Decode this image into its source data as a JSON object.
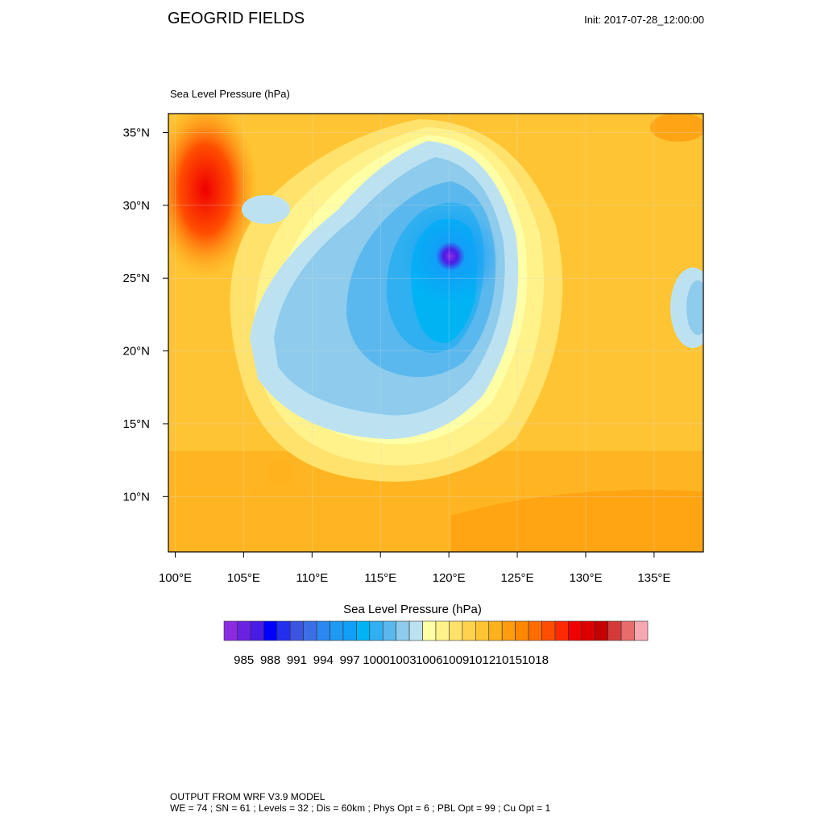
{
  "header": {
    "title": "GEOGRID FIELDS",
    "init": "Init: 2017-07-28_12:00:00"
  },
  "map": {
    "field_label": "Sea Level Pressure   (hPa)",
    "lon_labels": [
      "100°E",
      "105°E",
      "110°E",
      "115°E",
      "120°E",
      "125°E",
      "130°E",
      "135°E"
    ],
    "lat_labels": [
      "35°N",
      "30°N",
      "25°N",
      "20°N",
      "15°N",
      "10°N"
    ],
    "lon_values": [
      100,
      105,
      110,
      115,
      120,
      125,
      130,
      135
    ],
    "lat_values": [
      35,
      30,
      25,
      20,
      15,
      10
    ],
    "lon_range": [
      99.5,
      138.6
    ],
    "lat_range": [
      6.2,
      36.3
    ],
    "pressure_field": {
      "low_center": {
        "lon": 120.0,
        "lat": 26.9,
        "hPa": 984
      },
      "secondary_low": {
        "lon": 138.5,
        "lat": 23.5,
        "hPa": 1001
      },
      "high_northwest": {
        "lon": 102.5,
        "lat": 32.5,
        "hPa": 1015
      }
    }
  },
  "colorbar": {
    "title": "Sea Level Pressure  (hPa)",
    "tick_labels": [
      "985",
      "988",
      "991",
      "994",
      "997",
      "1000",
      "1003",
      "1006",
      "1009",
      "1012",
      "1015",
      "1018"
    ],
    "colors": [
      "#8a2be2",
      "#6a22e0",
      "#4b1be6",
      "#0000ff",
      "#2230ee",
      "#3b55e0",
      "#3a6fe8",
      "#2a88f0",
      "#1e9af5",
      "#129ff8",
      "#00b4f4",
      "#30b0f0",
      "#5ab8ee",
      "#8ecbec",
      "#bce2f2",
      "#ffffa6",
      "#fff28a",
      "#ffe26c",
      "#ffd24e",
      "#ffc433",
      "#ffb21d",
      "#ff9d0e",
      "#ff8800",
      "#ff6d00",
      "#ff4e00",
      "#ff2a00",
      "#f00000",
      "#dc0000",
      "#c40000",
      "#d43a3a",
      "#e86c6c",
      "#f5a8b0"
    ]
  },
  "footer": {
    "line1": "OUTPUT FROM WRF V3.9 MODEL",
    "line2": "WE = 74 ; SN = 61 ; Levels = 32 ; Dis = 60km ; Phys Opt = 6 ; PBL Opt = 99 ; Cu Opt = 1"
  }
}
